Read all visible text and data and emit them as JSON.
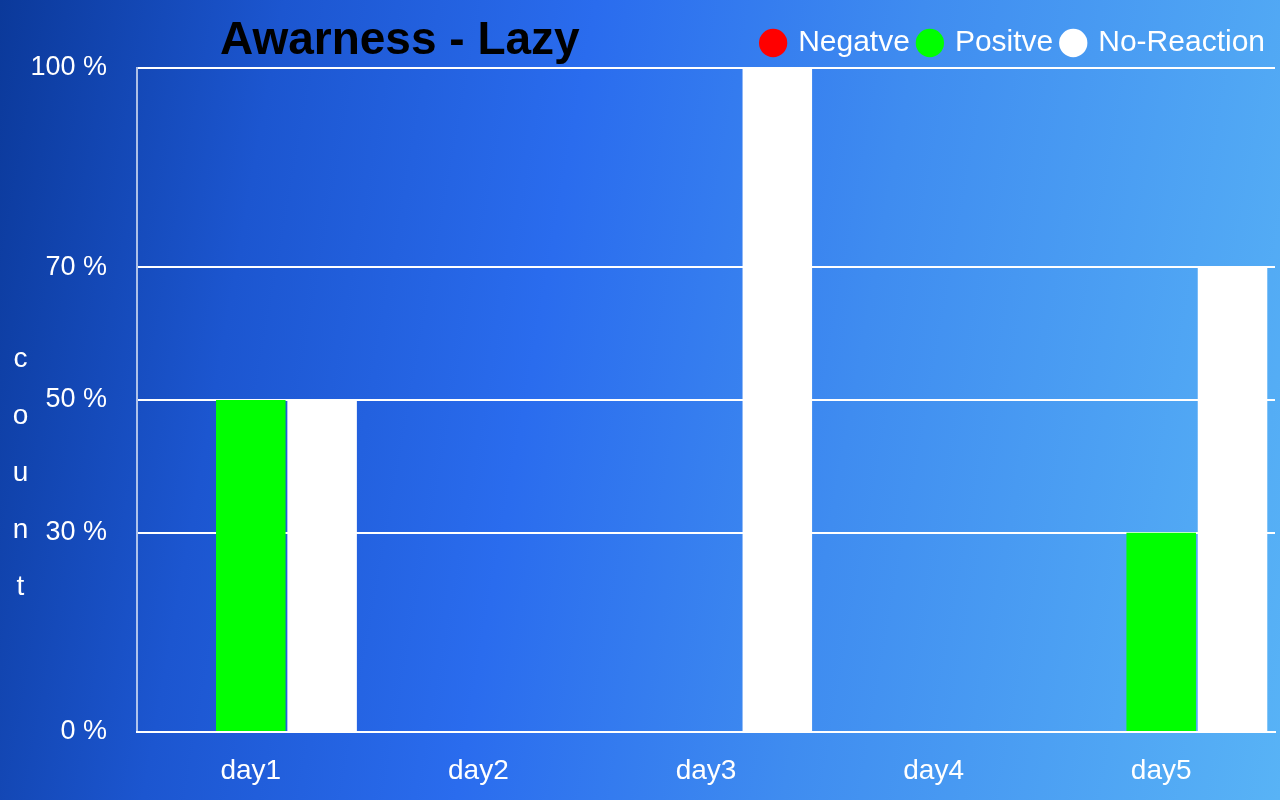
{
  "chart_data": {
    "type": "bar",
    "title": "Awarness - Lazy",
    "ylabel": "count",
    "categories": [
      "day1",
      "day2",
      "day3",
      "day4",
      "day5"
    ],
    "series": [
      {
        "name": "Negatve",
        "color": "#ff0000",
        "values": [
          0,
          0,
          0,
          0,
          0
        ]
      },
      {
        "name": "Positve",
        "color": "#00ff00",
        "values": [
          50,
          0,
          0,
          0,
          30
        ]
      },
      {
        "name": "No-Reaction",
        "color": "#ffffff",
        "values": [
          50,
          0,
          100,
          0,
          70
        ]
      }
    ],
    "ylim": [
      0,
      100
    ],
    "yticks": [
      {
        "value": 0,
        "label": "0 %"
      },
      {
        "value": 30,
        "label": "30 %"
      },
      {
        "value": 50,
        "label": "50 %"
      },
      {
        "value": 70,
        "label": "70 %"
      },
      {
        "value": 100,
        "label": "100 %"
      }
    ],
    "grid": "y",
    "legend": "top right"
  }
}
